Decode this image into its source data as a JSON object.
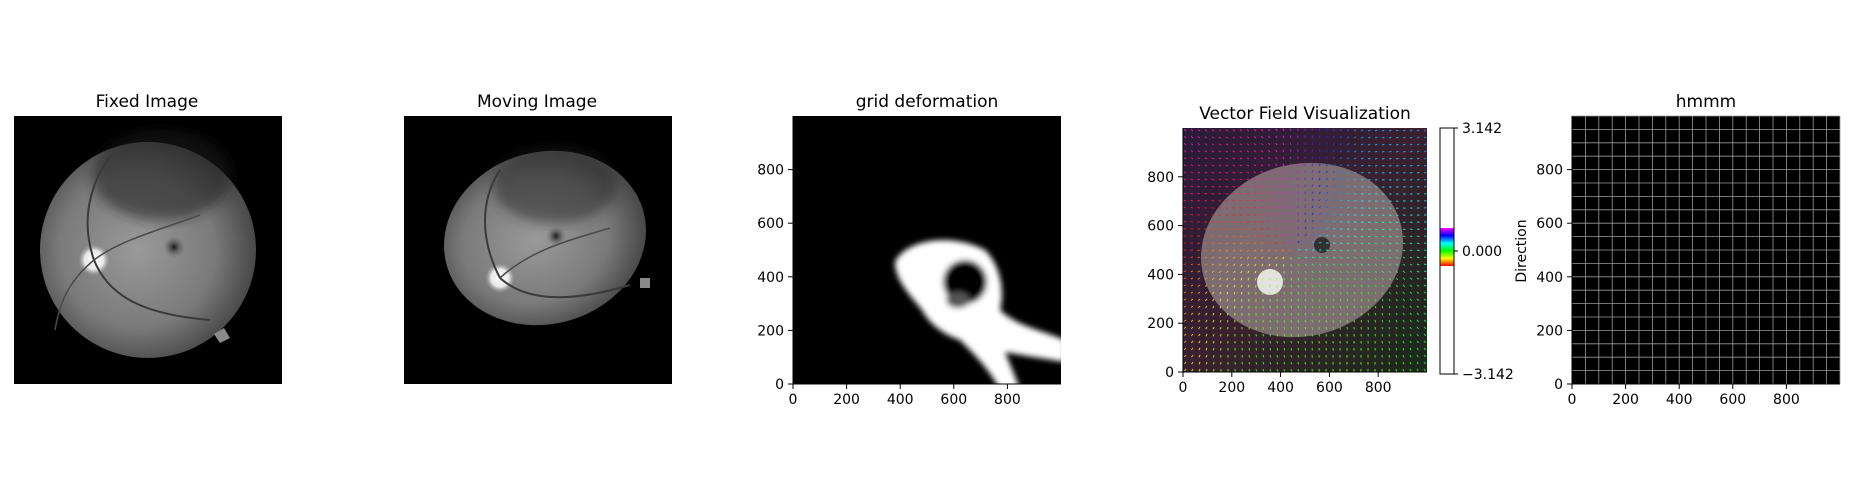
{
  "figure": {
    "panels": [
      {
        "title": "Fixed Image"
      },
      {
        "title": "Moving Image"
      },
      {
        "title": "grid deformation"
      },
      {
        "title": "Vector Field Visualization"
      },
      {
        "title": "hmmm"
      }
    ]
  },
  "colors": {
    "image_background": "#000000",
    "fundus_gray": "#8a8a8a",
    "grid_line": "#9a9a9a",
    "deformation_blob": "#ffffff"
  },
  "chart_data": [
    {
      "type": "heatmap",
      "title": "Fixed Image",
      "content": "grayscale retinal fundus photograph",
      "axes": "off"
    },
    {
      "type": "heatmap",
      "title": "Moving Image",
      "content": "grayscale retinal fundus photograph, shifted and rotated",
      "axes": "off"
    },
    {
      "type": "heatmap",
      "title": "grid deformation",
      "xlim": [
        0,
        1000
      ],
      "ylim": [
        0,
        1000
      ],
      "x_ticks": [
        "0",
        "200",
        "400",
        "600",
        "800"
      ],
      "y_ticks": [
        "0",
        "200",
        "400",
        "600",
        "800"
      ],
      "content": "white deformation region on black background"
    },
    {
      "type": "heatmap",
      "title": "Vector Field Visualization",
      "xlim": [
        0,
        1000
      ],
      "ylim": [
        0,
        1000
      ],
      "x_ticks": [
        "0",
        "200",
        "400",
        "600",
        "800"
      ],
      "y_ticks": [
        "0",
        "200",
        "400",
        "600",
        "800"
      ],
      "content": "vector field arrows colored by direction over moving image overlay",
      "colorbar": {
        "ticks": [
          "3.142",
          "0.000",
          "−3.142"
        ],
        "range": [
          -3.142,
          3.142
        ],
        "label": "Direction",
        "colormap": "hsv"
      }
    },
    {
      "type": "heatmap",
      "title": "hmmm",
      "xlim": [
        0,
        1000
      ],
      "ylim": [
        0,
        1000
      ],
      "x_ticks": [
        "0",
        "200",
        "400",
        "600",
        "800"
      ],
      "y_ticks": [
        "0",
        "200",
        "400",
        "600",
        "800"
      ],
      "content": "regular grid lines on black background",
      "grid_spacing": 50
    }
  ]
}
